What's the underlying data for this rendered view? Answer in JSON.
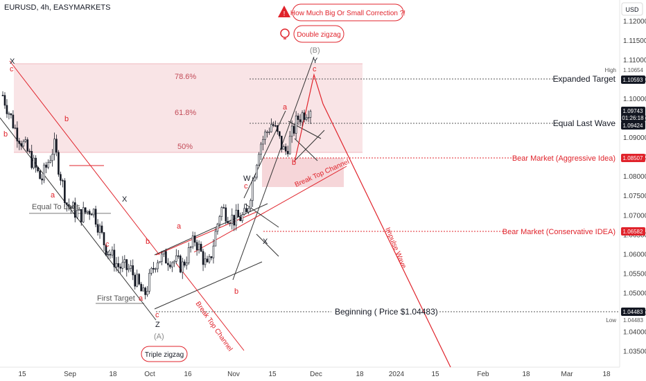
{
  "header": {
    "symbol": "EURUSD, 4h, EASYMARKETS"
  },
  "price_axis": {
    "currency": "USD",
    "ticks": [
      "1.12000",
      "1.11500",
      "1.11000",
      "1.10500",
      "1.10000",
      "1.09500",
      "1.09000",
      "1.08500",
      "1.08000",
      "1.07500",
      "1.07000",
      "1.06500",
      "1.06000",
      "1.05500",
      "1.05000",
      "1.04500",
      "1.04000",
      "1.03500"
    ],
    "high_label": "High",
    "high_value": "1.10654",
    "low_label": "Low",
    "low_value": "1.04483",
    "tags": [
      {
        "text": "1.10593",
        "bg": "#131722",
        "fg": "#ffffff",
        "price": 1.10593
      },
      {
        "text": "1.09743",
        "bg": "#131722",
        "fg": "#ffffff",
        "price": 1.09743
      },
      {
        "text": "01:26:18",
        "bg": "#131722",
        "fg": "#ffffff",
        "price": 1.09588
      },
      {
        "text": "1.09424",
        "bg": "#131722",
        "fg": "#ffffff",
        "price": 1.09424
      },
      {
        "text": "1.08507",
        "bg": "#e0232b",
        "fg": "#ffffff",
        "price": 1.08507
      },
      {
        "text": "1.06582",
        "bg": "#e0232b",
        "fg": "#ffffff",
        "price": 1.06582
      },
      {
        "text": "1.04483",
        "bg": "#131722",
        "fg": "#ffffff",
        "price": 1.04483
      }
    ]
  },
  "time_axis": [
    "15",
    "Sep",
    "18",
    "Oct",
    "16",
    "Nov",
    "15",
    "Dec",
    "18",
    "2024",
    "15",
    "Feb",
    "18",
    "Mar",
    "18"
  ],
  "callouts": {
    "warning": "How Much Big Or Small Correction ?!",
    "idea": "Double zigzag",
    "bottom": "Triple zigzag"
  },
  "fib": [
    "78.6%",
    "61.8%",
    "50%"
  ],
  "levels": {
    "expanded_target": "Expanded Target",
    "equal_last_wave": "Equal Last Wave",
    "bear_aggressive": "Bear Market (Aggressive Idea)",
    "bear_conservative": "Bear Market (Conservative IDEA)",
    "beginning": "Beginning ( Price $1.04483)"
  },
  "annotations": {
    "equal_to_lags": "Equal To Lags",
    "first_target": "First Target",
    "break_top_channel_1": "Break Top Channel",
    "break_top_channel_2": "Break Top Channel",
    "impulse_wave": "Impulse Wave"
  },
  "wave_labels": {
    "X1": "X",
    "c1": "c",
    "b1": "b",
    "b2": "b",
    "a1": "a",
    "X2": "X",
    "c2": "c",
    "Y1": "Y",
    "b3": "b",
    "a2": "a",
    "c3": "c",
    "Z": "Z",
    "A": "(A)",
    "a3": "a",
    "b4": "b",
    "W": "W",
    "c4": "c",
    "X3": "X",
    "a4": "a",
    "b5": "b",
    "B": "(B)",
    "Y2": "Y",
    "c5": "c"
  },
  "colors": {
    "red": "#e0232b",
    "dark": "#131722",
    "zone": "#f7d9dc"
  },
  "chart_data": {
    "type": "candlestick",
    "symbol": "EURUSD",
    "timeframe": "4h",
    "x_ticks": [
      "15",
      "Sep",
      "18",
      "Oct",
      "16",
      "Nov",
      "15",
      "Dec",
      "18",
      "2024",
      "15",
      "Feb",
      "18",
      "Mar",
      "18"
    ],
    "ylim": [
      1.031,
      1.1255
    ],
    "price_series": {
      "dates": [
        "Aug 10",
        "Aug 15",
        "Aug 20",
        "Aug 25",
        "Aug 30",
        "Sep 5",
        "Sep 11",
        "Sep 16",
        "Sep 20",
        "Sep 24",
        "Sep 29",
        "Oct 3",
        "Oct 8",
        "Oct 13",
        "Oct 18",
        "Oct 23",
        "Oct 28",
        "Nov 2",
        "Nov 6",
        "Nov 10",
        "Nov 14",
        "Nov 18",
        "Nov 22",
        "Nov 26",
        "Nov 30"
      ],
      "close": [
        1.101,
        1.092,
        1.086,
        1.079,
        1.088,
        1.073,
        1.07,
        1.072,
        1.062,
        1.057,
        1.056,
        1.049,
        1.059,
        1.059,
        1.057,
        1.064,
        1.056,
        1.072,
        1.069,
        1.07,
        1.088,
        1.094,
        1.086,
        1.095,
        1.098
      ]
    },
    "levels": [
      {
        "label": "Expanded Target",
        "price": 1.10593
      },
      {
        "label": "Equal Last Wave",
        "price": 1.09424
      },
      {
        "label": "Bear Market (Aggressive Idea)",
        "price": 1.08507
      },
      {
        "label": "Bear Market (Conservative IDEA)",
        "price": 1.06582
      },
      {
        "label": "Beginning ( Price $1.04483)",
        "price": 1.04483
      }
    ],
    "fibonacci": [
      {
        "label": "78.6%",
        "price": 1.103
      },
      {
        "label": "61.8%",
        "price": 1.0975
      },
      {
        "label": "50%",
        "price": 1.0915
      }
    ],
    "high": 1.10654,
    "low": 1.04483
  }
}
